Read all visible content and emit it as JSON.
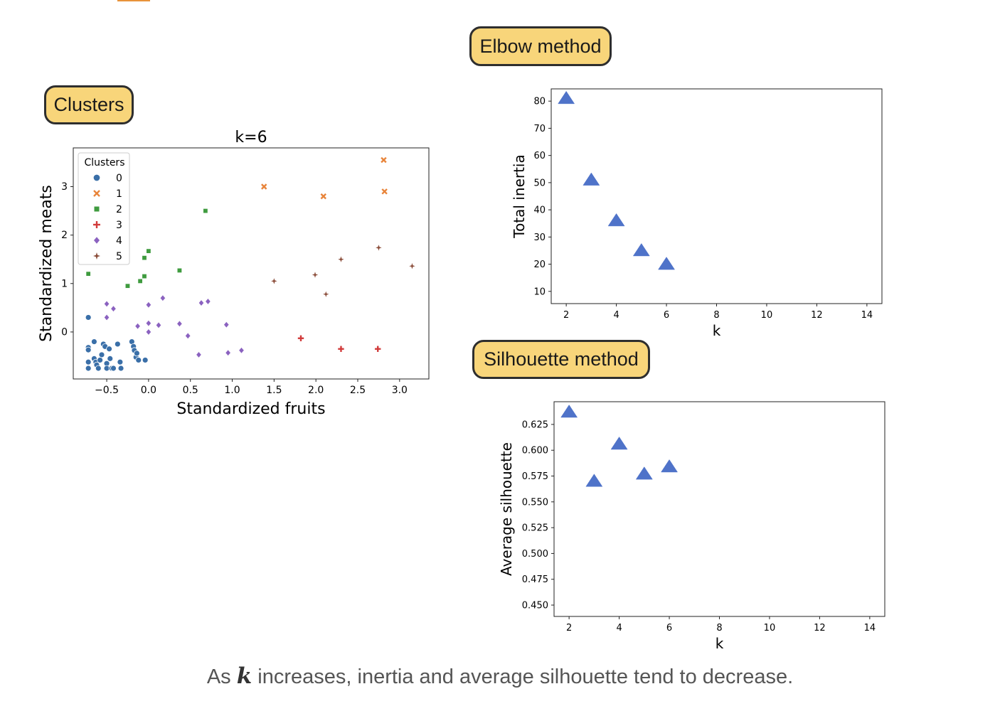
{
  "headers": {
    "clusters": "Clusters",
    "elbow": "Elbow method",
    "silhouette": "Silhouette method"
  },
  "caption": {
    "prefix": "As ",
    "variable": "k",
    "suffix": " increases, inertia and average silhouette tend to decrease."
  },
  "chart_data": [
    {
      "type": "scatter",
      "title": "k=6",
      "xlabel": "Standardized fruits",
      "ylabel": "Standardized meats",
      "xlim": [
        -0.9,
        3.35
      ],
      "ylim": [
        -0.97,
        3.8
      ],
      "xticks": [
        -0.5,
        0.0,
        0.5,
        1.0,
        1.5,
        2.0,
        2.5,
        3.0
      ],
      "xtick_labels": [
        "−0.5",
        "0.0",
        "0.5",
        "1.0",
        "1.5",
        "2.0",
        "2.5",
        "3.0"
      ],
      "yticks": [
        0,
        1,
        2,
        3
      ],
      "ytick_labels": [
        "0",
        "1",
        "2",
        "3"
      ],
      "legend": {
        "title": "Clusters",
        "placement": "upper-left"
      },
      "series": [
        {
          "name": "0",
          "marker": "circle",
          "color": "#3a6fa8",
          "points": [
            [
              -0.72,
              0.3
            ],
            [
              -0.72,
              -0.32
            ],
            [
              -0.72,
              -0.37
            ],
            [
              -0.72,
              -0.62
            ],
            [
              -0.72,
              -0.75
            ],
            [
              -0.65,
              -0.2
            ],
            [
              -0.65,
              -0.55
            ],
            [
              -0.63,
              -0.62
            ],
            [
              -0.62,
              -0.68
            ],
            [
              -0.6,
              -0.75
            ],
            [
              -0.58,
              -0.58
            ],
            [
              -0.56,
              -0.47
            ],
            [
              -0.54,
              -0.25
            ],
            [
              -0.52,
              -0.3
            ],
            [
              -0.5,
              -0.65
            ],
            [
              -0.5,
              -0.75
            ],
            [
              -0.47,
              -0.35
            ],
            [
              -0.46,
              -0.55
            ],
            [
              -0.44,
              -0.75
            ],
            [
              -0.42,
              -0.75
            ],
            [
              -0.37,
              -0.25
            ],
            [
              -0.34,
              -0.62
            ],
            [
              -0.33,
              -0.75
            ],
            [
              -0.2,
              -0.2
            ],
            [
              -0.18,
              -0.3
            ],
            [
              -0.17,
              -0.38
            ],
            [
              -0.15,
              -0.52
            ],
            [
              -0.14,
              -0.44
            ],
            [
              -0.12,
              -0.58
            ],
            [
              -0.04,
              -0.58
            ]
          ]
        },
        {
          "name": "1",
          "marker": "x",
          "color": "#e8843a",
          "points": [
            [
              1.38,
              3.0
            ],
            [
              2.09,
              2.8
            ],
            [
              2.81,
              3.55
            ],
            [
              2.82,
              2.9
            ]
          ]
        },
        {
          "name": "2",
          "marker": "square",
          "color": "#3f9b3f",
          "points": [
            [
              -0.72,
              1.2
            ],
            [
              -0.25,
              0.95
            ],
            [
              -0.1,
              1.05
            ],
            [
              -0.05,
              1.53
            ],
            [
              -0.05,
              1.15
            ],
            [
              0.0,
              1.67
            ],
            [
              0.37,
              1.27
            ],
            [
              0.68,
              2.5
            ]
          ]
        },
        {
          "name": "3",
          "marker": "plus",
          "color": "#d13b3b",
          "points": [
            [
              1.82,
              -0.13
            ],
            [
              2.3,
              -0.35
            ],
            [
              2.74,
              -0.35
            ]
          ]
        },
        {
          "name": "4",
          "marker": "diamond",
          "color": "#8b62c0",
          "points": [
            [
              -0.5,
              0.58
            ],
            [
              -0.5,
              0.3
            ],
            [
              -0.42,
              0.48
            ],
            [
              -0.13,
              0.12
            ],
            [
              -0.0,
              0.18
            ],
            [
              -0.0,
              0.56
            ],
            [
              0.0,
              0.0
            ],
            [
              0.12,
              0.14
            ],
            [
              0.17,
              0.7
            ],
            [
              0.37,
              0.17
            ],
            [
              0.47,
              -0.08
            ],
            [
              0.6,
              -0.47
            ],
            [
              0.63,
              0.6
            ],
            [
              0.71,
              0.63
            ],
            [
              0.93,
              0.15
            ],
            [
              0.95,
              -0.43
            ],
            [
              1.11,
              -0.38
            ]
          ]
        },
        {
          "name": "5",
          "marker": "star",
          "color": "#8b4d3a",
          "points": [
            [
              1.5,
              1.05
            ],
            [
              1.99,
              1.18
            ],
            [
              2.12,
              0.78
            ],
            [
              2.3,
              1.5
            ],
            [
              2.75,
              1.74
            ],
            [
              3.15,
              1.36
            ]
          ]
        }
      ]
    },
    {
      "type": "scatter",
      "name": "elbow",
      "xlabel": "k",
      "ylabel": "Total inertia",
      "xlim": [
        1.4,
        14.6
      ],
      "ylim": [
        5.5,
        84.5
      ],
      "xticks": [
        2,
        4,
        6,
        8,
        10,
        12,
        14
      ],
      "yticks": [
        10,
        20,
        30,
        40,
        50,
        60,
        70,
        80
      ],
      "marker": "triangle",
      "color": "#4f73c9",
      "x": [
        2,
        3,
        4,
        5,
        6
      ],
      "y": [
        81,
        51,
        36,
        25,
        20
      ]
    },
    {
      "type": "scatter",
      "name": "silhouette",
      "xlabel": "k",
      "ylabel": "Average silhouette",
      "xlim": [
        1.4,
        14.6
      ],
      "ylim": [
        0.439,
        0.647
      ],
      "xticks": [
        2,
        4,
        6,
        8,
        10,
        12,
        14
      ],
      "yticks": [
        0.45,
        0.475,
        0.5,
        0.525,
        0.55,
        0.575,
        0.6,
        0.625
      ],
      "ytick_labels": [
        "0.450",
        "0.475",
        "0.500",
        "0.525",
        "0.550",
        "0.575",
        "0.600",
        "0.625"
      ],
      "marker": "triangle",
      "color": "#4f73c9",
      "x": [
        2,
        3,
        4,
        5,
        6
      ],
      "y": [
        0.637,
        0.57,
        0.606,
        0.577,
        0.584
      ]
    }
  ]
}
